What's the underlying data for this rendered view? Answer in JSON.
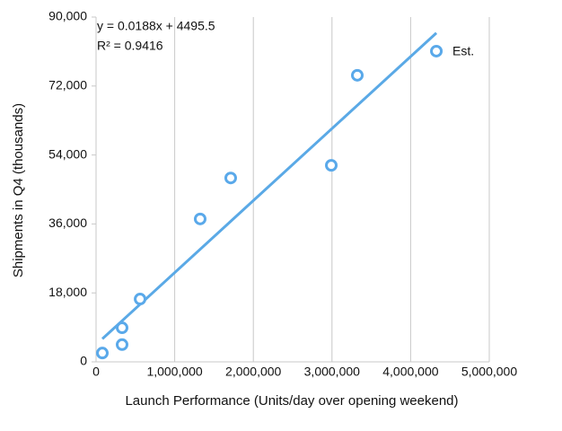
{
  "chart_data": {
    "type": "scatter",
    "x_label": "Launch Performance (Units/day over opening weekend)",
    "y_label": "Shipments in Q4 (thousands)",
    "annotations": [
      "y = 0.0188x + 4495.5",
      "R² = 0.9416"
    ],
    "x": [
      80000,
      331000,
      331000,
      560000,
      1324000,
      1712000,
      2991000,
      3322000,
      4327000
    ],
    "values": [
      2300,
      4500,
      8900,
      16400,
      37300,
      48000,
      51300,
      74800,
      81100
    ],
    "point_labels": [
      null,
      null,
      null,
      null,
      null,
      null,
      null,
      null,
      "Est."
    ],
    "color": "#5aa9ea",
    "trendline": {
      "x": [
        80000,
        4327000
      ],
      "values": [
        6000,
        85843
      ],
      "color": "#5aa9e6"
    },
    "xlim": [
      0,
      5000000
    ],
    "xticks": [
      0,
      {
        "value": 1000000,
        "label": "1,000,000"
      },
      {
        "value": 2000000,
        "label": "2,000,000"
      },
      {
        "value": 3000000,
        "label": "3,000,000"
      },
      {
        "value": 4000000,
        "label": "4,000,000"
      },
      {
        "value": 5000000,
        "label": "5,000,000"
      }
    ],
    "ylim": [
      0,
      90000
    ],
    "yticks": [
      0,
      {
        "value": 18000,
        "label": "18,000"
      },
      {
        "value": 36000,
        "label": "36,000"
      },
      {
        "value": 54000,
        "label": "54,000"
      },
      {
        "value": 72000,
        "label": "72,000"
      },
      {
        "value": 90000,
        "label": "90,000"
      }
    ],
    "grid": true
  }
}
